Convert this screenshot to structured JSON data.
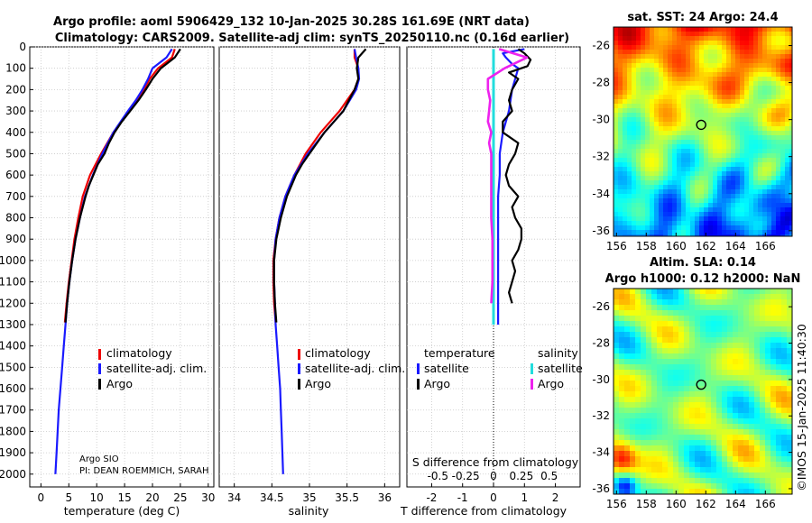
{
  "title_line1": "Argo profile: aoml 5906429_132 10-Jan-2025 30.28S 161.69E (NRT data)",
  "title_line2": "Climatology: CARS2009. Satellite-adj clim: synTS_20250110.nc (0.16d earlier)",
  "credits": {
    "line1": "Argo SIO",
    "line2": "PI: DEAN ROEMMICH, SARAH"
  },
  "watermark": "©IMOS 15-Jan-2025 11:40:30",
  "colors": {
    "climatology": "#ee0000",
    "satellite": "#1a1aff",
    "argo": "#000000",
    "sal_sat": "#22dddd",
    "sal_diff": "#ee22ee"
  },
  "chart_data": [
    {
      "type": "line",
      "id": "temperature",
      "xlabel": "temperature (deg C)",
      "ylabel": "",
      "xlim": [
        -2,
        31
      ],
      "ylim": [
        2060,
        0
      ],
      "xticks": [
        0,
        5,
        10,
        15,
        20,
        25,
        30
      ],
      "yticks": [
        0,
        100,
        200,
        300,
        400,
        500,
        600,
        700,
        800,
        900,
        1000,
        1100,
        1200,
        1300,
        1400,
        1500,
        1600,
        1700,
        1800,
        1900,
        2000
      ],
      "legend": [
        "climatology",
        "satellite-adj. clim.",
        "Argo"
      ],
      "series": [
        {
          "name": "climatology",
          "depth": [
            10,
            50,
            100,
            150,
            200,
            250,
            300,
            400,
            500,
            600,
            700,
            800,
            900,
            1000,
            1100,
            1200,
            1290
          ],
          "values": [
            24.0,
            23.5,
            21.0,
            19.5,
            18.5,
            17.3,
            15.8,
            13.0,
            10.8,
            8.8,
            7.5,
            6.7,
            6.0,
            5.5,
            5.0,
            4.6,
            4.3
          ]
        },
        {
          "name": "satellite-adj. clim.",
          "depth": [
            10,
            50,
            100,
            150,
            200,
            250,
            300,
            400,
            500,
            600,
            700,
            800,
            900,
            1000,
            1100,
            1200,
            1300,
            1400,
            1500,
            1600,
            1700,
            1800,
            1900,
            2000
          ],
          "values": [
            23.5,
            22.5,
            20.0,
            19.2,
            18.2,
            17.0,
            15.6,
            13.0,
            11.0,
            9.3,
            7.9,
            7.0,
            6.2,
            5.6,
            5.1,
            4.7,
            4.4,
            4.1,
            3.8,
            3.5,
            3.2,
            3.0,
            2.8,
            2.6
          ]
        },
        {
          "name": "Argo",
          "depth": [
            10,
            50,
            100,
            150,
            200,
            250,
            300,
            350,
            400,
            450,
            500,
            550,
            600,
            650,
            700,
            800,
            900,
            1000,
            1100,
            1200,
            1290
          ],
          "values": [
            25.0,
            24.0,
            21.5,
            20.0,
            18.8,
            17.5,
            16.0,
            14.5,
            13.2,
            12.2,
            11.4,
            10.2,
            9.4,
            8.6,
            8.0,
            7.0,
            6.2,
            5.6,
            5.1,
            4.7,
            4.4
          ]
        }
      ]
    },
    {
      "type": "line",
      "id": "salinity",
      "xlabel": "salinity",
      "ylabel": "",
      "xlim": [
        33.8,
        36.2
      ],
      "ylim": [
        2060,
        0
      ],
      "xticks": [
        34,
        34.5,
        35,
        35.5,
        36
      ],
      "legend": [
        "climatology",
        "satellite-adj. clim.",
        "Argo"
      ],
      "series": [
        {
          "name": "climatology",
          "depth": [
            10,
            50,
            100,
            150,
            200,
            300,
            400,
            500,
            600,
            700,
            800,
            900,
            1000,
            1100,
            1200,
            1290
          ],
          "values": [
            35.6,
            35.6,
            35.65,
            35.65,
            35.6,
            35.4,
            35.15,
            34.95,
            34.8,
            34.68,
            34.6,
            34.55,
            34.52,
            34.52,
            34.53,
            34.55
          ]
        },
        {
          "name": "satellite-adj. clim.",
          "depth": [
            10,
            50,
            100,
            150,
            200,
            300,
            400,
            500,
            600,
            700,
            800,
            900,
            1000,
            1100,
            1200,
            1300,
            1400,
            1500,
            1600,
            1700,
            1800,
            1900,
            2000
          ],
          "values": [
            35.6,
            35.62,
            35.65,
            35.66,
            35.62,
            35.45,
            35.2,
            34.98,
            34.8,
            34.68,
            34.6,
            34.55,
            34.53,
            34.53,
            34.54,
            34.55,
            34.57,
            34.59,
            34.61,
            34.62,
            34.63,
            34.64,
            34.65
          ]
        },
        {
          "name": "Argo",
          "depth": [
            10,
            50,
            100,
            150,
            200,
            300,
            400,
            500,
            550,
            600,
            700,
            800,
            900,
            1000,
            1100,
            1200,
            1290
          ],
          "values": [
            35.75,
            35.65,
            35.63,
            35.65,
            35.6,
            35.45,
            35.2,
            35.0,
            34.9,
            34.82,
            34.7,
            34.62,
            34.56,
            34.53,
            34.53,
            34.54,
            34.56
          ]
        }
      ]
    },
    {
      "type": "line",
      "id": "difference",
      "xlabel": "T difference from climatology",
      "xlabel_top": "S difference from climatology",
      "xlim": [
        -2.8,
        2.8
      ],
      "ylim": [
        2060,
        0
      ],
      "xticks": [
        -2,
        -1,
        0,
        1,
        2
      ],
      "xticks_top": [
        "-0.5",
        "-0.25",
        "0",
        "0.25",
        "0.5"
      ],
      "legend_left_title": "temperature",
      "legend_right_title": "salinity",
      "legend_left": [
        "satellite",
        "Argo"
      ],
      "legend_right": [
        "satellite",
        "Argo"
      ],
      "series": [
        {
          "name": "T satellite",
          "depth": [
            10,
            30,
            50,
            80,
            100,
            150,
            200,
            300,
            400,
            500,
            600,
            700,
            800,
            900,
            1000,
            1100,
            1200,
            1300
          ],
          "values": [
            1.0,
            0.3,
            0.4,
            0.6,
            0.8,
            0.7,
            0.6,
            0.5,
            0.3,
            0.2,
            0.2,
            0.15,
            0.15,
            0.15,
            0.15,
            0.15,
            0.15,
            0.15
          ]
        },
        {
          "name": "T Argo",
          "depth": [
            10,
            30,
            60,
            90,
            120,
            150,
            200,
            250,
            300,
            350,
            400,
            450,
            500,
            550,
            600,
            650,
            700,
            750,
            800,
            850,
            900,
            950,
            1000,
            1050,
            1100,
            1150,
            1200
          ],
          "values": [
            0.8,
            1.0,
            1.2,
            1.1,
            0.5,
            0.8,
            0.6,
            0.5,
            0.6,
            0.3,
            0.3,
            0.8,
            0.7,
            0.5,
            0.4,
            0.5,
            0.8,
            0.6,
            0.7,
            0.9,
            0.9,
            0.8,
            0.6,
            0.7,
            0.6,
            0.5,
            0.6
          ]
        },
        {
          "name": "S satellite",
          "depth": [
            10,
            100,
            200,
            300,
            400,
            500,
            600,
            700,
            800,
            900,
            1000,
            1100,
            1200,
            1300
          ],
          "values": [
            0.0,
            0.0,
            0.0,
            0.0,
            0.0,
            0.0,
            0.0,
            0.0,
            0.0,
            0.0,
            0.0,
            0.0,
            0.0,
            0.0
          ]
        },
        {
          "name": "S Argo",
          "depth": [
            10,
            50,
            100,
            150,
            200,
            250,
            300,
            350,
            400,
            450,
            500,
            600,
            700,
            800,
            900,
            1000,
            1100,
            1200
          ],
          "values": [
            0.05,
            0.3,
            0.1,
            -0.05,
            -0.05,
            -0.03,
            -0.04,
            -0.05,
            -0.02,
            -0.04,
            -0.02,
            -0.02,
            -0.02,
            -0.02,
            -0.01,
            -0.01,
            -0.01,
            -0.02
          ]
        }
      ]
    },
    {
      "type": "heatmap",
      "id": "sst_map",
      "title": "sat. SST: 24 Argo: 24.4",
      "xlim": [
        155.8,
        167.8
      ],
      "ylim": [
        -36.3,
        -25
      ],
      "xticks": [
        156,
        158,
        160,
        162,
        164,
        166
      ],
      "yticks": [
        -26,
        -28,
        -30,
        -32,
        -34,
        -36
      ],
      "marker": {
        "lon": 161.69,
        "lat": -30.28
      }
    },
    {
      "type": "heatmap",
      "id": "sla_map",
      "title_line1": "Altim. SLA: 0.14",
      "title_line2": "Argo h1000: 0.12 h2000: NaN",
      "xlim": [
        155.8,
        167.8
      ],
      "ylim": [
        -36.3,
        -25
      ],
      "xticks": [
        156,
        158,
        160,
        162,
        164,
        166
      ],
      "yticks": [
        -26,
        -28,
        -30,
        -32,
        -34,
        -36
      ],
      "marker": {
        "lon": 161.69,
        "lat": -30.28
      }
    }
  ]
}
